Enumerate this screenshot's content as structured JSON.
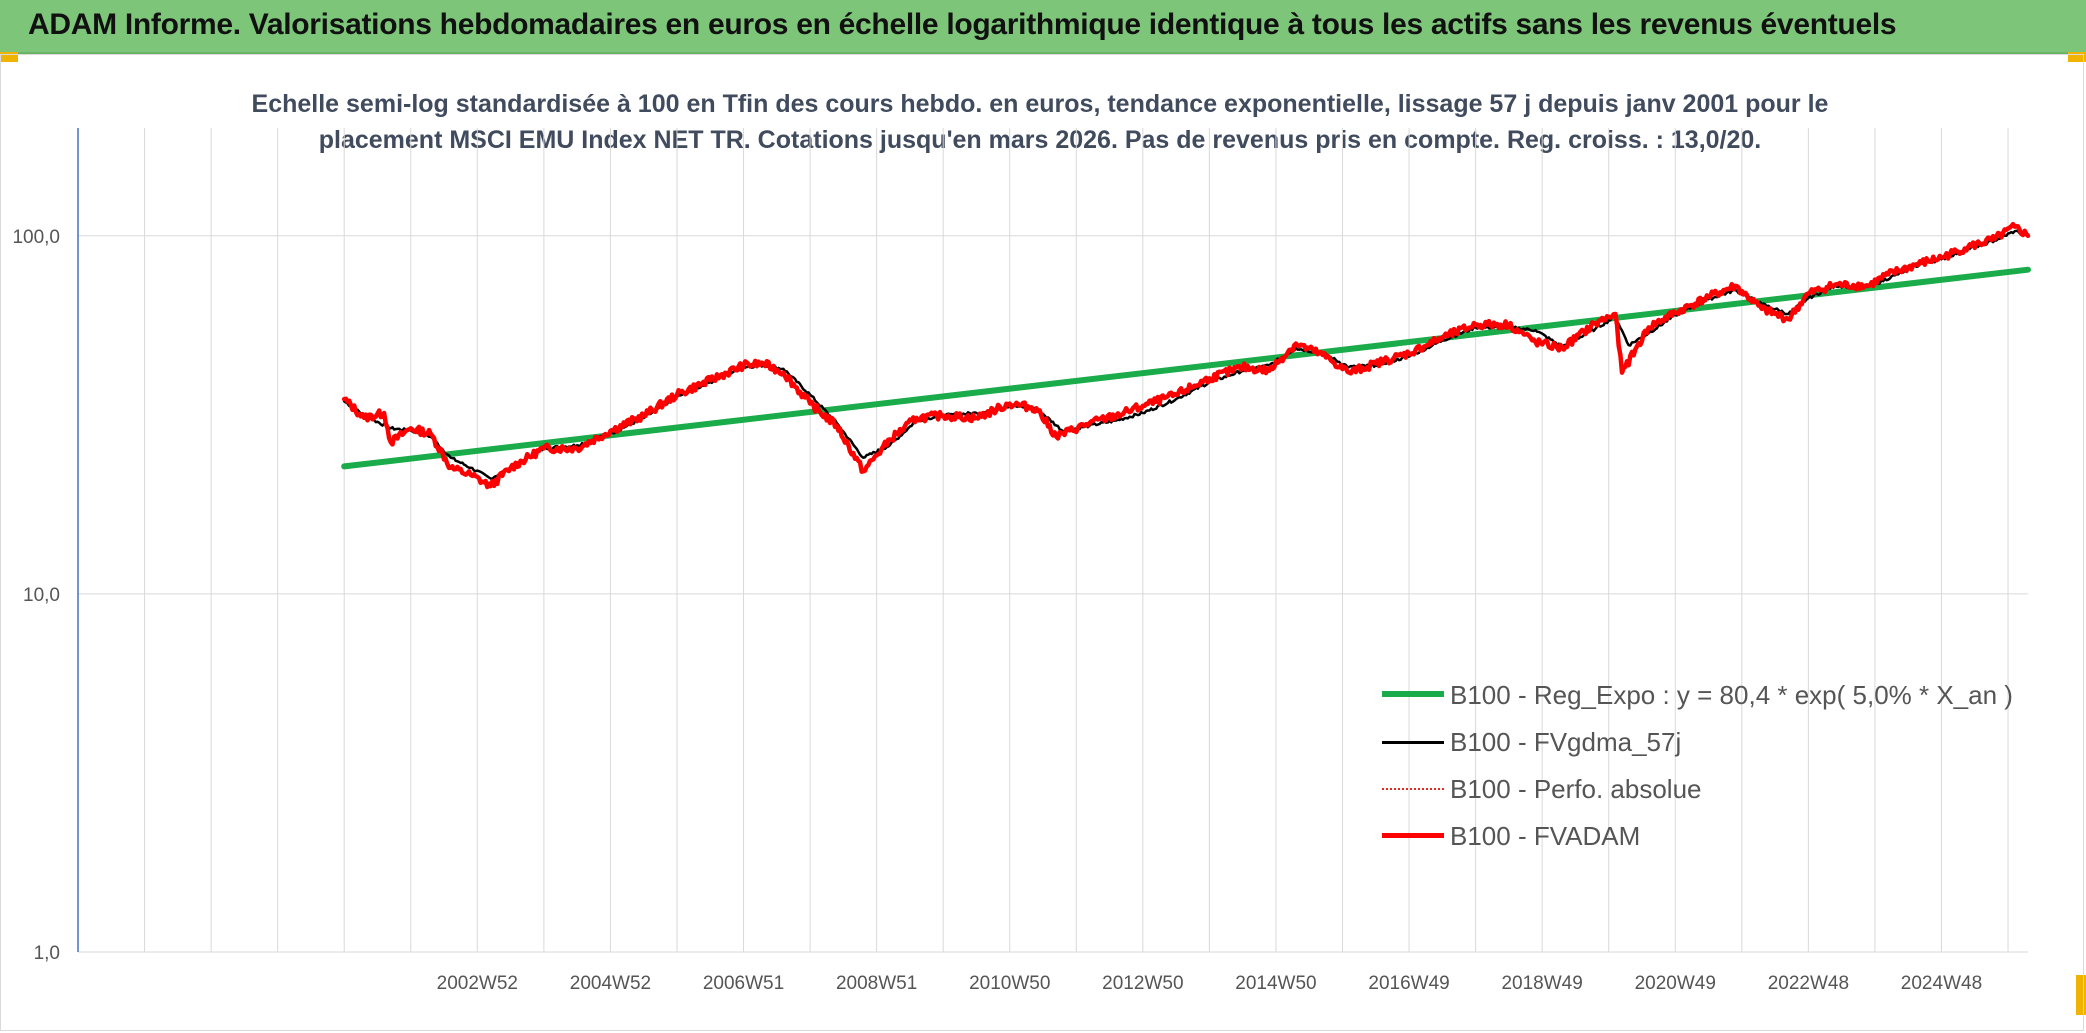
{
  "header": {
    "title": "ADAM Informe. Valorisations hebdomadaires en euros en échelle logarithmique identique à tous les actifs sans les revenus éventuels"
  },
  "colors": {
    "banner": "#7dc679",
    "trend": "#1aab4a",
    "moving_average": "#000000",
    "performance": "#e8281e",
    "fvadam": "#ff0000",
    "grid": "#d9d9d9",
    "axis": "#4472c4"
  },
  "chart_data": {
    "type": "line",
    "title": "Echelle semi-log standardisée à 100 en Tfin des cours hebdo. en euros, tendance exponentielle, lissage 57 j depuis janv 2001 pour le placement MSCI EMU Index NET TR. Cotations jusqu'en mars 2026. Pas de revenus pris en compte. Reg. croiss. : 13,0/20.",
    "y_scale": "log",
    "ylim": [
      1,
      200
    ],
    "y_ticks": [
      "1,0",
      "10,0",
      "100,0"
    ],
    "xlim": [
      1997.0,
      2026.3
    ],
    "x_tick_labels": [
      "2002W52",
      "2004W52",
      "2006W51",
      "2008W51",
      "2010W50",
      "2012W50",
      "2014W50",
      "2016W49",
      "2018W49",
      "2020W49",
      "2022W48",
      "2024W48"
    ],
    "x_tick_positions": [
      2003.0,
      2005.0,
      2007.0,
      2009.0,
      2011.0,
      2013.0,
      2015.0,
      2017.0,
      2019.0,
      2021.0,
      2023.0,
      2025.0
    ],
    "grid": true,
    "legend_position": "bottom-right",
    "series": [
      {
        "name": "B100 - Reg_Expo : y = 80,4 * exp( 5,0% * X_an )",
        "style": "thick-green",
        "x": [
          2001.0,
          2026.3
        ],
        "values": [
          22.7,
          80.4
        ]
      },
      {
        "name": "B100 - FVgdma_57j",
        "style": "black",
        "x": [
          2001.0,
          2001.3,
          2001.7,
          2002.0,
          2002.3,
          2002.6,
          2002.9,
          2003.2,
          2003.5,
          2004.0,
          2004.5,
          2005.0,
          2005.5,
          2006.0,
          2006.5,
          2007.0,
          2007.3,
          2007.6,
          2008.0,
          2008.4,
          2008.8,
          2009.2,
          2009.6,
          2010.0,
          2010.5,
          2011.0,
          2011.4,
          2011.8,
          2012.2,
          2012.6,
          2013.0,
          2013.5,
          2014.0,
          2014.5,
          2014.9,
          2015.3,
          2015.7,
          2016.1,
          2016.5,
          2017.0,
          2017.5,
          2018.0,
          2018.5,
          2018.9,
          2019.3,
          2019.8,
          2020.1,
          2020.3,
          2020.6,
          2021.0,
          2021.5,
          2021.9,
          2022.3,
          2022.7,
          2023.0,
          2023.4,
          2023.9,
          2024.3,
          2024.7,
          2025.0,
          2025.4,
          2025.8,
          2026.1,
          2026.3
        ],
        "values": [
          34.5,
          31.5,
          29.0,
          28.6,
          27.5,
          24.0,
          22.5,
          21.0,
          22.5,
          25.5,
          26.0,
          28.0,
          31.0,
          35.5,
          39.0,
          43.0,
          43.5,
          42.5,
          36.0,
          30.0,
          24.0,
          26.0,
          30.5,
          31.5,
          32.0,
          33.5,
          33.0,
          28.5,
          29.5,
          30.5,
          32.0,
          35.0,
          39.0,
          42.0,
          43.5,
          48.5,
          47.0,
          43.0,
          43.5,
          46.0,
          51.0,
          55.5,
          55.5,
          54.5,
          49.0,
          55.0,
          59.5,
          49.5,
          53.5,
          60.0,
          66.5,
          70.5,
          64.5,
          60.5,
          67.0,
          72.5,
          72.0,
          77.5,
          83.5,
          86.0,
          92.0,
          97.0,
          103.0,
          101.0
        ]
      },
      {
        "name": "B100 - Perfo. absolue",
        "style": "dotted-red",
        "x": [
          2001.0,
          2001.3,
          2001.6,
          2001.7,
          2002.0,
          2002.3,
          2002.6,
          2002.9,
          2003.2,
          2003.5,
          2004.0,
          2004.5,
          2005.0,
          2005.5,
          2006.0,
          2006.5,
          2007.0,
          2007.3,
          2007.6,
          2008.0,
          2008.4,
          2008.8,
          2009.2,
          2009.6,
          2010.0,
          2010.5,
          2011.0,
          2011.4,
          2011.7,
          2012.2,
          2012.6,
          2013.0,
          2013.5,
          2014.0,
          2014.5,
          2014.9,
          2015.3,
          2015.7,
          2016.1,
          2016.5,
          2017.0,
          2017.5,
          2018.0,
          2018.5,
          2018.9,
          2019.3,
          2019.8,
          2020.1,
          2020.2,
          2020.6,
          2021.0,
          2021.5,
          2021.9,
          2022.3,
          2022.7,
          2023.0,
          2023.4,
          2023.9,
          2024.2,
          2024.7,
          2025.0,
          2025.4,
          2025.8,
          2026.1,
          2026.3
        ],
        "values": [
          35.0,
          31.0,
          32.0,
          26.5,
          29.0,
          28.0,
          22.5,
          21.5,
          20.0,
          22.5,
          25.5,
          25.5,
          28.5,
          31.5,
          36.0,
          39.5,
          43.5,
          44.0,
          41.5,
          34.0,
          29.5,
          22.0,
          27.0,
          31.0,
          31.5,
          31.0,
          34.0,
          33.0,
          27.5,
          30.0,
          31.5,
          33.5,
          36.0,
          40.0,
          43.0,
          42.0,
          50.0,
          46.5,
          41.5,
          44.0,
          47.0,
          52.0,
          56.5,
          56.5,
          50.5,
          48.5,
          57.0,
          60.5,
          41.5,
          55.5,
          61.0,
          67.5,
          72.5,
          62.5,
          58.5,
          69.0,
          73.0,
          72.5,
          78.0,
          84.0,
          87.0,
          93.0,
          98.0,
          106.0,
          100.0
        ]
      },
      {
        "name": "B100 - FVADAM",
        "style": "thick-red",
        "x": [
          2001.0,
          2001.3,
          2001.6,
          2001.7,
          2002.0,
          2002.3,
          2002.6,
          2002.9,
          2003.2,
          2003.5,
          2004.0,
          2004.5,
          2005.0,
          2005.5,
          2006.0,
          2006.5,
          2007.0,
          2007.3,
          2007.6,
          2008.0,
          2008.4,
          2008.8,
          2009.2,
          2009.6,
          2010.0,
          2010.5,
          2011.0,
          2011.4,
          2011.7,
          2012.2,
          2012.6,
          2013.0,
          2013.5,
          2014.0,
          2014.5,
          2014.9,
          2015.3,
          2015.7,
          2016.1,
          2016.5,
          2017.0,
          2017.5,
          2018.0,
          2018.5,
          2018.9,
          2019.3,
          2019.8,
          2020.1,
          2020.2,
          2020.6,
          2021.0,
          2021.5,
          2021.9,
          2022.3,
          2022.7,
          2023.0,
          2023.4,
          2023.9,
          2024.2,
          2024.7,
          2025.0,
          2025.4,
          2025.8,
          2026.1,
          2026.3
        ],
        "values": [
          35.0,
          31.0,
          32.0,
          26.5,
          29.0,
          28.0,
          22.5,
          21.5,
          20.0,
          22.5,
          25.5,
          25.5,
          28.5,
          31.5,
          36.0,
          39.5,
          43.5,
          44.0,
          41.5,
          34.0,
          29.5,
          22.0,
          27.0,
          31.0,
          31.5,
          31.0,
          34.0,
          33.0,
          27.5,
          30.0,
          31.5,
          33.5,
          36.0,
          40.0,
          43.0,
          42.0,
          50.0,
          46.5,
          41.5,
          44.0,
          47.0,
          52.0,
          56.5,
          56.5,
          50.5,
          48.5,
          57.0,
          60.5,
          41.5,
          55.5,
          61.0,
          67.5,
          72.5,
          62.5,
          58.5,
          69.0,
          73.0,
          72.5,
          78.0,
          84.0,
          87.0,
          93.0,
          98.0,
          106.0,
          100.0
        ]
      }
    ]
  }
}
